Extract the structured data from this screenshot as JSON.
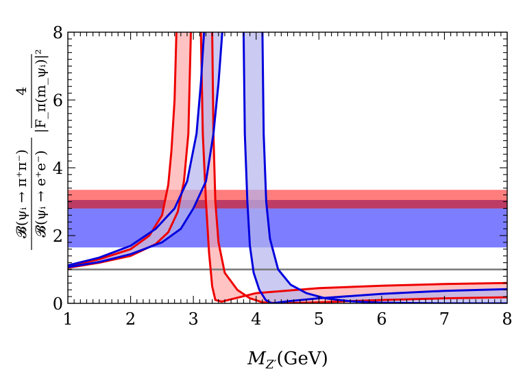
{
  "chart_data": {
    "type": "line",
    "xlabel_main": "M",
    "xlabel_sub": "Z′",
    "xlabel_unit": "(GeV)",
    "ylabel_num": "𝓑(ψᵢ → π⁺π⁻)",
    "ylabel_den": "𝓑(ψᵢ → e⁺e⁻)",
    "ylabel_factor_num": "4",
    "ylabel_factor_den": "|F_π(m_ψᵢ)|²",
    "xlim": [
      1,
      8
    ],
    "ylim": [
      0,
      8
    ],
    "x_ticks": [
      "1",
      "2",
      "3",
      "4",
      "5",
      "6",
      "7",
      "8"
    ],
    "y_ticks": [
      "0",
      "2",
      "4",
      "6",
      "8"
    ],
    "reference_line": {
      "y": 1.0,
      "color": "#777777"
    },
    "horizontal_bands": [
      {
        "y_low": 2.8,
        "y_high": 3.35,
        "color": "#ff6666"
      },
      {
        "y_low": 1.65,
        "y_high": 2.8,
        "color": "#6666ff"
      },
      {
        "y_low": 2.8,
        "y_high": 3.05,
        "color": "#b03060"
      }
    ],
    "series": [
      {
        "color": "#ee0000",
        "fill": "#ffaaaa",
        "left_branch": {
          "curve_a": [
            [
              1.0,
              1.1
            ],
            [
              1.5,
              1.3
            ],
            [
              2.0,
              1.6
            ],
            [
              2.3,
              2.0
            ],
            [
              2.5,
              2.6
            ],
            [
              2.6,
              3.5
            ],
            [
              2.65,
              4.5
            ],
            [
              2.7,
              6.0
            ],
            [
              2.73,
              8.0
            ]
          ],
          "curve_b": [
            [
              1.0,
              1.05
            ],
            [
              1.5,
              1.2
            ],
            [
              2.0,
              1.4
            ],
            [
              2.4,
              1.75
            ],
            [
              2.6,
              2.1
            ],
            [
              2.75,
              2.7
            ],
            [
              2.85,
              3.6
            ],
            [
              2.92,
              5.0
            ],
            [
              2.96,
              8.0
            ]
          ]
        },
        "right_branch": {
          "curve_a": [
            [
              3.12,
              8.0
            ],
            [
              3.15,
              5.0
            ],
            [
              3.2,
              3.0
            ],
            [
              3.25,
              1.5
            ],
            [
              3.3,
              0.5
            ],
            [
              3.35,
              0.1
            ],
            [
              3.45,
              0.05
            ],
            [
              3.6,
              0.12
            ],
            [
              4.0,
              0.3
            ],
            [
              5.0,
              0.45
            ],
            [
              6.0,
              0.52
            ],
            [
              7.0,
              0.57
            ],
            [
              8.0,
              0.6
            ]
          ],
          "curve_b": [
            [
              3.3,
              8.0
            ],
            [
              3.32,
              5.0
            ],
            [
              3.35,
              3.0
            ],
            [
              3.4,
              1.8
            ],
            [
              3.5,
              0.9
            ],
            [
              3.7,
              0.4
            ],
            [
              3.9,
              0.15
            ],
            [
              4.1,
              0.03
            ],
            [
              4.4,
              0.0
            ],
            [
              5.0,
              0.03
            ],
            [
              6.0,
              0.1
            ],
            [
              7.0,
              0.15
            ],
            [
              8.0,
              0.18
            ]
          ]
        }
      },
      {
        "color": "#0000dd",
        "fill": "#b4b4ee",
        "left_branch": {
          "curve_a": [
            [
              1.0,
              1.12
            ],
            [
              1.5,
              1.35
            ],
            [
              2.0,
              1.7
            ],
            [
              2.4,
              2.2
            ],
            [
              2.7,
              2.8
            ],
            [
              2.9,
              3.6
            ],
            [
              3.05,
              5.0
            ],
            [
              3.12,
              6.5
            ],
            [
              3.17,
              8.0
            ]
          ],
          "curve_b": [
            [
              1.0,
              1.07
            ],
            [
              1.5,
              1.22
            ],
            [
              2.0,
              1.45
            ],
            [
              2.5,
              1.8
            ],
            [
              2.8,
              2.2
            ],
            [
              3.0,
              2.8
            ],
            [
              3.2,
              3.6
            ],
            [
              3.32,
              5.0
            ],
            [
              3.4,
              6.5
            ],
            [
              3.46,
              8.0
            ]
          ]
        },
        "right_branch": {
          "curve_a": [
            [
              3.8,
              8.0
            ],
            [
              3.82,
              5.0
            ],
            [
              3.86,
              3.0
            ],
            [
              3.9,
              1.7
            ],
            [
              3.96,
              0.9
            ],
            [
              4.05,
              0.4
            ],
            [
              4.15,
              0.1
            ],
            [
              4.25,
              0.0
            ],
            [
              4.5,
              0.06
            ],
            [
              5.0,
              0.15
            ],
            [
              6.0,
              0.28
            ],
            [
              7.0,
              0.37
            ],
            [
              8.0,
              0.42
            ]
          ],
          "curve_b": [
            [
              4.1,
              8.0
            ],
            [
              4.12,
              5.0
            ],
            [
              4.16,
              3.0
            ],
            [
              4.22,
              1.9
            ],
            [
              4.35,
              1.0
            ],
            [
              4.55,
              0.55
            ],
            [
              4.8,
              0.3
            ],
            [
              5.1,
              0.15
            ],
            [
              5.5,
              0.06
            ],
            [
              6.0,
              0.02
            ],
            [
              7.0,
              0.0
            ],
            [
              8.0,
              0.0
            ]
          ]
        }
      }
    ]
  }
}
